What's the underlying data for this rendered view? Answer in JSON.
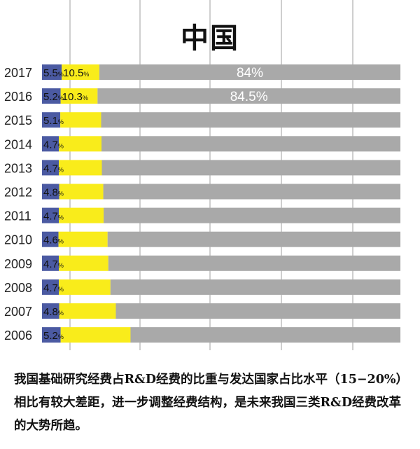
{
  "chart_data": {
    "type": "bar",
    "stacked": true,
    "orientation": "horizontal",
    "title": "中国",
    "categories": [
      "2017",
      "2016",
      "2015",
      "2014",
      "2013",
      "2012",
      "2011",
      "2010",
      "2009",
      "2008",
      "2007",
      "2006"
    ],
    "series": [
      {
        "values": [
          5.5,
          5.2,
          5.1,
          4.7,
          4.7,
          4.8,
          4.7,
          4.6,
          4.7,
          4.7,
          4.8,
          5.2
        ],
        "labels": [
          "5.5%",
          "5.2%",
          "5.1%",
          "4.7%",
          "4.7%",
          "4.8%",
          "4.7%",
          "4.6%",
          "4.7%",
          "4.7%",
          "4.8%",
          "5.2%"
        ]
      },
      {
        "values": [
          10.5,
          10.3,
          11.4,
          11.9,
          12.0,
          12.3,
          12.5,
          13.7,
          13.8,
          14.4,
          15.8,
          19.5
        ],
        "labels": [
          "10.5%",
          "10.3%",
          "",
          "",
          "",
          "",
          "",
          "",
          "",
          "",
          "",
          ""
        ]
      },
      {
        "values": [
          84,
          84.5,
          83.5,
          83.4,
          83.3,
          82.9,
          82.8,
          81.7,
          81.5,
          80.9,
          79.4,
          75.3
        ],
        "labels": [
          "84%",
          "84.5%",
          "",
          "",
          "",
          "",
          "",
          "",
          "",
          "",
          "",
          ""
        ]
      }
    ],
    "xlim": [
      0,
      100
    ],
    "grid": true,
    "colors": {
      "basic": "#4b5aa2",
      "applied": "#f9ec1b",
      "experimental": "#a9a9a9",
      "grid": "#cfcfcf",
      "text": "#222222"
    }
  },
  "caption": "我国基础研究经费占R&D经费的比重与发达国家占比水平（15−20%）相比有较大差距，进一步调整经费结构，是未来我国三类R&D经费改革的大势所趋。"
}
